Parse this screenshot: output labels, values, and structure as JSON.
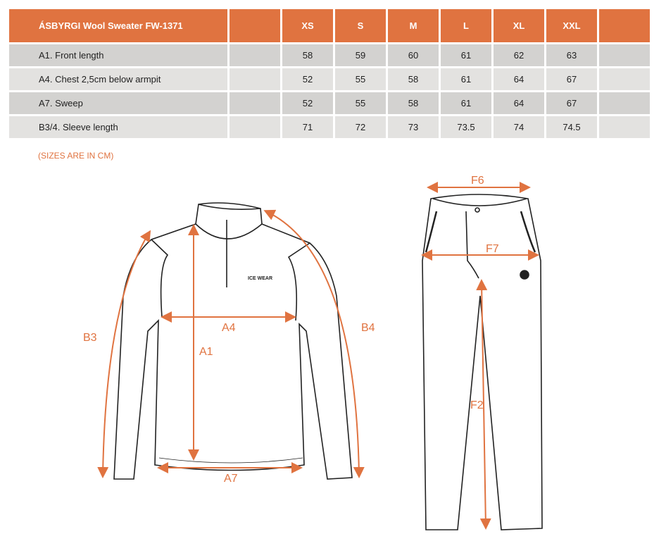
{
  "table": {
    "title": "ÁSBYRGI  Wool Sweater FW-1371",
    "sizes": [
      "XS",
      "S",
      "M",
      "L",
      "XL",
      "XXL"
    ],
    "rows": [
      {
        "label": "A1. Front length",
        "values": [
          "58",
          "59",
          "60",
          "61",
          "62",
          "63"
        ]
      },
      {
        "label": "A4. Chest 2,5cm below armpit",
        "values": [
          "52",
          "55",
          "58",
          "61",
          "64",
          "67"
        ]
      },
      {
        "label": "A7. Sweep",
        "values": [
          "52",
          "55",
          "58",
          "61",
          "64",
          "67"
        ]
      },
      {
        "label": "B3/4. Sleeve length",
        "values": [
          "71",
          "72",
          "73",
          "73.5",
          "74",
          "74.5"
        ]
      }
    ]
  },
  "note": "(SIZES ARE IN CM)",
  "diagram": {
    "sweater_labels": {
      "a1": "A1",
      "a4": "A4",
      "a7": "A7",
      "b3": "B3",
      "b4": "B4"
    },
    "pants_labels": {
      "f6": "F6",
      "f7": "F7",
      "f2": "F2"
    },
    "logo": "ICE WEAR",
    "accent": "#e07340"
  }
}
